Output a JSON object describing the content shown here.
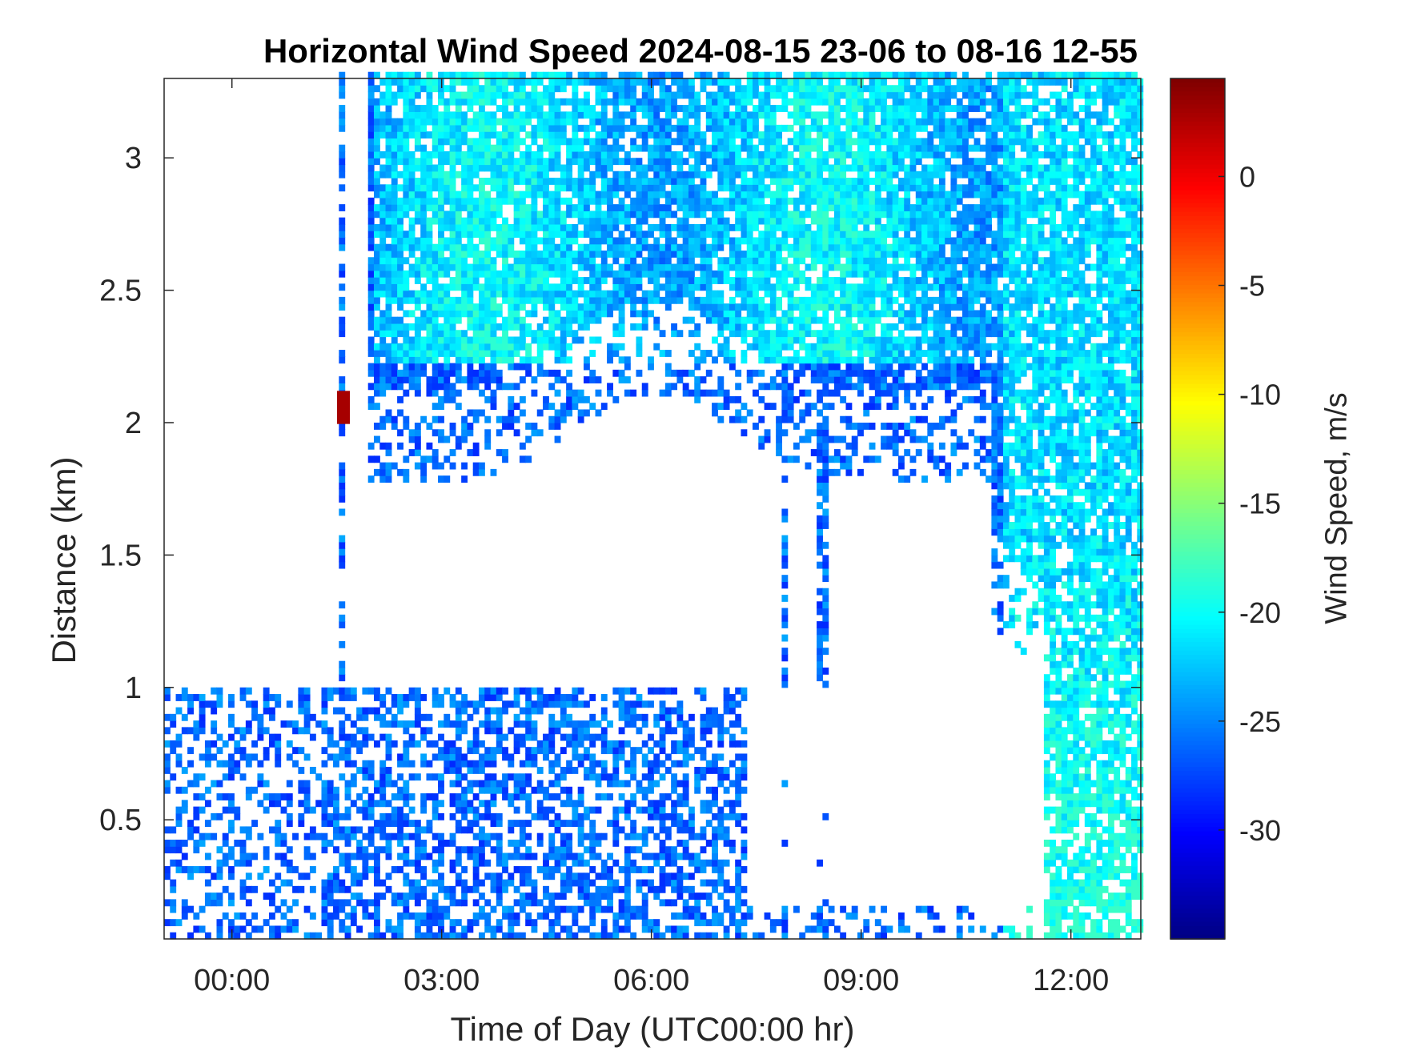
{
  "chart_data": {
    "type": "heatmap",
    "title": "Horizontal Wind Speed 2024-08-15 23-06 to 08-16 12-55",
    "xlabel": "Time of Day (UTC00:00 hr)",
    "ylabel": "Distance (km)",
    "colorbar_label": "Wind Speed, m/s",
    "colormap": "jet",
    "x_range_hours": [
      -0.97,
      13.0
    ],
    "y_range_km": [
      0.05,
      3.3
    ],
    "x_ticks": [
      {
        "value": 0,
        "label": "00:00"
      },
      {
        "value": 3,
        "label": "03:00"
      },
      {
        "value": 6,
        "label": "06:00"
      },
      {
        "value": 9,
        "label": "09:00"
      },
      {
        "value": 12,
        "label": "12:00"
      }
    ],
    "y_ticks": [
      {
        "value": 0.5,
        "label": "0.5"
      },
      {
        "value": 1,
        "label": "1"
      },
      {
        "value": 1.5,
        "label": "1.5"
      },
      {
        "value": 2,
        "label": "2"
      },
      {
        "value": 2.5,
        "label": "2.5"
      },
      {
        "value": 3,
        "label": "3"
      }
    ],
    "colorbar_range": [
      -35,
      4.5
    ],
    "colorbar_ticks": [
      {
        "value": 0,
        "label": "0"
      },
      {
        "value": -5,
        "label": "-5"
      },
      {
        "value": -10,
        "label": "-10"
      },
      {
        "value": -15,
        "label": "-15"
      },
      {
        "value": -20,
        "label": "-20"
      },
      {
        "value": -25,
        "label": "-25"
      },
      {
        "value": -30,
        "label": "-30"
      }
    ],
    "data_summary": {
      "region_upper_0130_1300": {
        "altitude_km": [
          2.0,
          3.3
        ],
        "speed_ms": -22
      },
      "region_lower_2306_0700": {
        "altitude_km": [
          0.05,
          1.0
        ],
        "speed_ms": -27
      },
      "region_late_1100_1300": {
        "altitude_km": [
          0.05,
          3.3
        ],
        "speed_ms": -23
      },
      "outlier_near_0130": {
        "time": "01:35",
        "altitude_km": 2.05,
        "speed_ms": 3
      }
    }
  }
}
